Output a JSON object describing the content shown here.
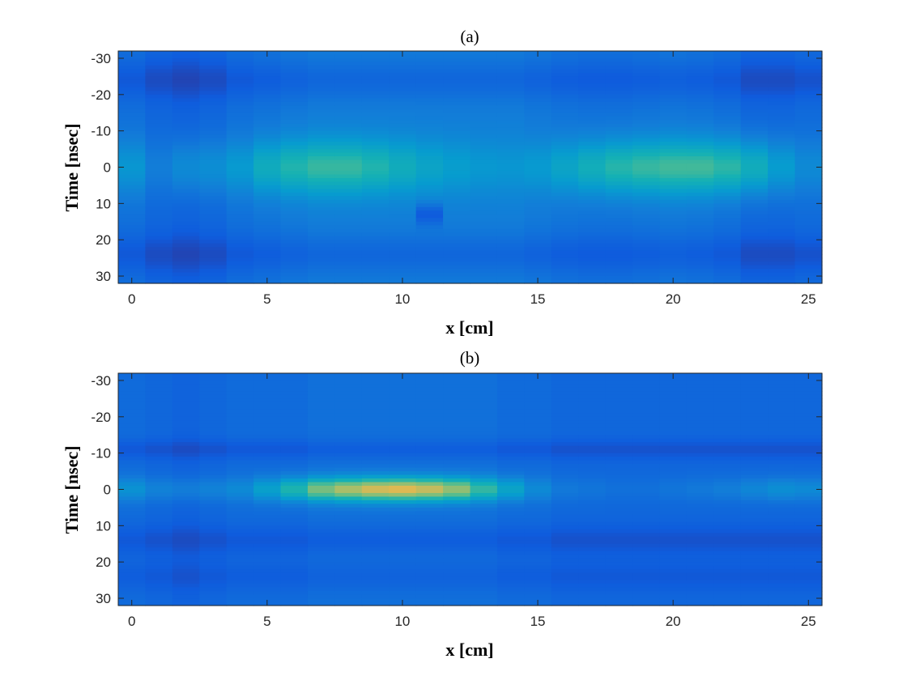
{
  "chart_data": [
    {
      "type": "heatmap",
      "title": "(a)",
      "xlabel": "x [cm]",
      "ylabel": "Time [nsec]",
      "xlim": [
        -0.5,
        25.5
      ],
      "ylim": [
        32,
        -32
      ],
      "y_reversed": true,
      "x_ticks": [
        0,
        5,
        10,
        15,
        20,
        25
      ],
      "y_ticks": [
        -30,
        -20,
        -10,
        0,
        10,
        20,
        30
      ],
      "colormap": "parula",
      "color_range": [
        0,
        1
      ],
      "x": [
        0,
        1,
        2,
        3,
        4,
        5,
        6,
        7,
        8,
        9,
        10,
        11,
        12,
        13,
        14,
        15,
        16,
        17,
        18,
        19,
        20,
        21,
        22,
        23,
        24,
        25
      ],
      "peak_intensity": [
        0.42,
        0.3,
        0.36,
        0.38,
        0.44,
        0.55,
        0.62,
        0.66,
        0.66,
        0.62,
        0.56,
        0.5,
        0.46,
        0.43,
        0.42,
        0.44,
        0.5,
        0.57,
        0.63,
        0.66,
        0.68,
        0.68,
        0.64,
        0.56,
        0.45,
        0.36
      ],
      "background_intensity": [
        0.24,
        0.2,
        0.18,
        0.2,
        0.24,
        0.26,
        0.28,
        0.3,
        0.3,
        0.3,
        0.3,
        0.3,
        0.3,
        0.3,
        0.3,
        0.28,
        0.26,
        0.25,
        0.25,
        0.26,
        0.27,
        0.26,
        0.24,
        0.2,
        0.2,
        0.22
      ],
      "pulse_center": 0,
      "pulse_half_width": 7,
      "dark_bands": [
        {
          "center": -24,
          "width": 4,
          "depth": 0.1
        },
        {
          "center": 24,
          "width": 4,
          "depth": 0.1
        },
        {
          "center": 13,
          "x": 11,
          "width": 2,
          "depth": 0.16
        }
      ]
    },
    {
      "type": "heatmap",
      "title": "(b)",
      "xlabel": "x [cm]",
      "ylabel": "Time [nsec]",
      "xlim": [
        -0.5,
        25.5
      ],
      "ylim": [
        32,
        -32
      ],
      "y_reversed": true,
      "x_ticks": [
        0,
        5,
        10,
        15,
        20,
        25
      ],
      "y_ticks": [
        -30,
        -20,
        -10,
        0,
        10,
        20,
        30
      ],
      "colormap": "parula",
      "color_range": [
        0,
        1
      ],
      "x": [
        0,
        1,
        2,
        3,
        4,
        5,
        6,
        7,
        8,
        9,
        10,
        11,
        12,
        13,
        14,
        15,
        16,
        17,
        18,
        19,
        20,
        21,
        22,
        23,
        24,
        25
      ],
      "peak_intensity": [
        0.4,
        0.32,
        0.3,
        0.32,
        0.36,
        0.48,
        0.62,
        0.78,
        0.86,
        0.92,
        0.94,
        0.9,
        0.82,
        0.66,
        0.5,
        0.36,
        0.28,
        0.26,
        0.24,
        0.24,
        0.26,
        0.28,
        0.3,
        0.34,
        0.38,
        0.36
      ],
      "background_intensity": [
        0.22,
        0.2,
        0.18,
        0.2,
        0.22,
        0.22,
        0.22,
        0.24,
        0.24,
        0.24,
        0.24,
        0.24,
        0.24,
        0.24,
        0.22,
        0.22,
        0.2,
        0.2,
        0.2,
        0.2,
        0.2,
        0.2,
        0.2,
        0.2,
        0.2,
        0.2
      ],
      "pulse_center": 0,
      "pulse_half_width": 3,
      "dark_bands": [
        {
          "center": -11,
          "width": 2,
          "depth": 0.08
        },
        {
          "center": 14,
          "width": 3,
          "depth": 0.08
        },
        {
          "center": 24,
          "width": 3,
          "depth": 0.06
        }
      ]
    }
  ]
}
